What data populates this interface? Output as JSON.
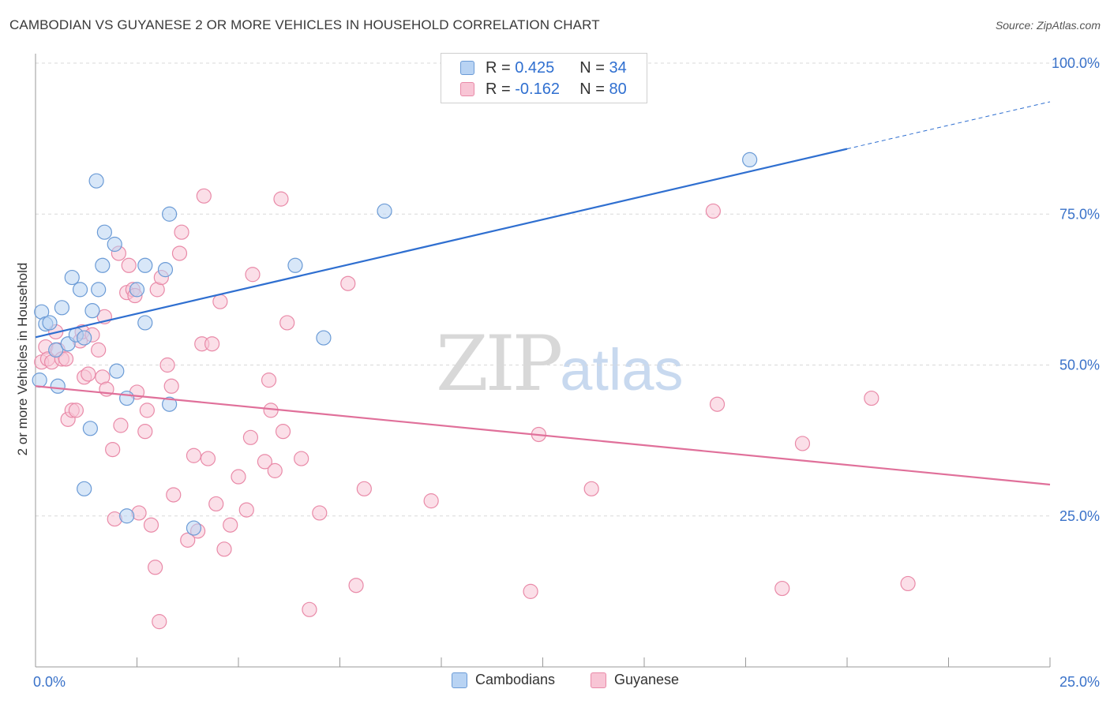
{
  "title": "CAMBODIAN VS GUYANESE 2 OR MORE VEHICLES IN HOUSEHOLD CORRELATION CHART",
  "source": "Source: ZipAtlas.com",
  "watermark": {
    "zip": "ZIP",
    "atlas": "atlas"
  },
  "legend": {
    "rows": [
      {
        "r_label": "R =",
        "r_value": "0.425",
        "n_label": "N =",
        "n_value": "34"
      },
      {
        "r_label": "R =",
        "r_value": "-0.162",
        "n_label": "N =",
        "n_value": "80"
      }
    ]
  },
  "bottom_legend": [
    "Cambodians",
    "Guyanese"
  ],
  "colors": {
    "cambodians_fill": "#b8d3f3",
    "cambodians_stroke": "#6b9bd6",
    "cambodians_line": "#2f6fd0",
    "guyanese_fill": "#f8c5d5",
    "guyanese_stroke": "#e98aa8",
    "guyanese_line": "#e0709a",
    "axis_label": "#3a72c9",
    "grid": "#d9d9d9"
  },
  "chart_data": {
    "type": "scatter",
    "title": "CAMBODIAN VS GUYANESE 2 OR MORE VEHICLES IN HOUSEHOLD CORRELATION CHART",
    "xlabel": "",
    "ylabel": "2 or more Vehicles in Household",
    "xlim": [
      0,
      25
    ],
    "ylim": [
      0,
      100
    ],
    "x_tick_labels": [
      "0.0%",
      "25.0%"
    ],
    "y_tick_labels": [
      "25.0%",
      "50.0%",
      "75.0%",
      "100.0%"
    ],
    "y_ticks": [
      25,
      50,
      75,
      100
    ],
    "grid": true,
    "legend_position": "top-center",
    "series": [
      {
        "name": "Cambodians",
        "R": 0.425,
        "N": 34,
        "trend": {
          "x0": 0,
          "y0": 54.6,
          "x1": 20,
          "y1": 85.8,
          "dashed_to_x": 25,
          "dashed_to_y": 93.6
        },
        "points": [
          [
            0.1,
            47.5
          ],
          [
            0.15,
            58.8
          ],
          [
            0.25,
            56.8
          ],
          [
            0.35,
            57.0
          ],
          [
            0.5,
            52.5
          ],
          [
            0.55,
            46.5
          ],
          [
            0.65,
            59.5
          ],
          [
            0.8,
            53.5
          ],
          [
            0.9,
            64.5
          ],
          [
            1.0,
            55.0
          ],
          [
            1.1,
            62.5
          ],
          [
            1.2,
            54.5
          ],
          [
            1.35,
            39.5
          ],
          [
            1.4,
            59.0
          ],
          [
            1.5,
            80.5
          ],
          [
            1.55,
            62.5
          ],
          [
            1.65,
            66.5
          ],
          [
            1.7,
            72.0
          ],
          [
            1.2,
            29.5
          ],
          [
            1.95,
            70.0
          ],
          [
            2.0,
            49.0
          ],
          [
            2.25,
            44.5
          ],
          [
            2.25,
            25.0
          ],
          [
            2.5,
            62.5
          ],
          [
            2.7,
            57.0
          ],
          [
            2.7,
            66.5
          ],
          [
            3.2,
            65.8
          ],
          [
            3.3,
            75.0
          ],
          [
            3.3,
            43.5
          ],
          [
            3.9,
            23.0
          ],
          [
            6.4,
            66.5
          ],
          [
            7.1,
            54.5
          ],
          [
            8.6,
            75.5
          ],
          [
            17.6,
            84.0
          ]
        ]
      },
      {
        "name": "Guyanese",
        "R": -0.162,
        "N": 80,
        "trend": {
          "x0": 0,
          "y0": 46.5,
          "x1": 25,
          "y1": 30.2
        },
        "points": [
          [
            0.15,
            50.5
          ],
          [
            0.25,
            53.0
          ],
          [
            0.3,
            51.0
          ],
          [
            0.4,
            50.5
          ],
          [
            0.5,
            55.5
          ],
          [
            0.55,
            52.5
          ],
          [
            0.65,
            51.0
          ],
          [
            0.75,
            51.0
          ],
          [
            0.8,
            41.0
          ],
          [
            0.9,
            42.5
          ],
          [
            1.0,
            42.5
          ],
          [
            1.1,
            54.0
          ],
          [
            1.15,
            55.5
          ],
          [
            1.2,
            48.0
          ],
          [
            1.3,
            48.5
          ],
          [
            1.4,
            55.0
          ],
          [
            1.55,
            52.5
          ],
          [
            1.65,
            48.0
          ],
          [
            1.7,
            58.0
          ],
          [
            1.75,
            46.0
          ],
          [
            1.9,
            36.0
          ],
          [
            1.95,
            24.5
          ],
          [
            2.05,
            68.5
          ],
          [
            2.1,
            40.0
          ],
          [
            2.25,
            62.0
          ],
          [
            2.3,
            66.5
          ],
          [
            2.4,
            62.5
          ],
          [
            2.45,
            61.5
          ],
          [
            2.5,
            45.5
          ],
          [
            2.55,
            25.5
          ],
          [
            2.7,
            39.0
          ],
          [
            2.75,
            42.5
          ],
          [
            2.85,
            23.5
          ],
          [
            2.95,
            16.5
          ],
          [
            3.0,
            62.5
          ],
          [
            3.05,
            7.5
          ],
          [
            3.1,
            64.5
          ],
          [
            3.25,
            50.0
          ],
          [
            3.35,
            46.5
          ],
          [
            3.4,
            28.5
          ],
          [
            3.55,
            68.5
          ],
          [
            3.6,
            72.0
          ],
          [
            3.75,
            21.0
          ],
          [
            3.9,
            35.0
          ],
          [
            4.0,
            22.5
          ],
          [
            4.1,
            53.5
          ],
          [
            4.15,
            78.0
          ],
          [
            4.25,
            34.5
          ],
          [
            4.35,
            53.5
          ],
          [
            4.45,
            27.0
          ],
          [
            4.55,
            60.5
          ],
          [
            4.65,
            19.5
          ],
          [
            4.8,
            23.5
          ],
          [
            5.0,
            31.5
          ],
          [
            5.2,
            26.0
          ],
          [
            5.3,
            38.0
          ],
          [
            5.35,
            65.0
          ],
          [
            5.65,
            34.0
          ],
          [
            5.75,
            47.5
          ],
          [
            5.8,
            42.5
          ],
          [
            5.9,
            32.5
          ],
          [
            6.05,
            77.5
          ],
          [
            6.1,
            39.0
          ],
          [
            6.2,
            57.0
          ],
          [
            6.55,
            34.5
          ],
          [
            6.75,
            9.5
          ],
          [
            7.0,
            25.5
          ],
          [
            7.7,
            63.5
          ],
          [
            7.9,
            13.5
          ],
          [
            8.1,
            29.5
          ],
          [
            9.75,
            27.5
          ],
          [
            12.2,
            12.5
          ],
          [
            12.4,
            38.5
          ],
          [
            13.7,
            29.5
          ],
          [
            16.7,
            75.5
          ],
          [
            16.8,
            43.5
          ],
          [
            18.4,
            13.0
          ],
          [
            18.9,
            37.0
          ],
          [
            20.6,
            44.5
          ],
          [
            21.5,
            13.8
          ]
        ]
      }
    ]
  }
}
